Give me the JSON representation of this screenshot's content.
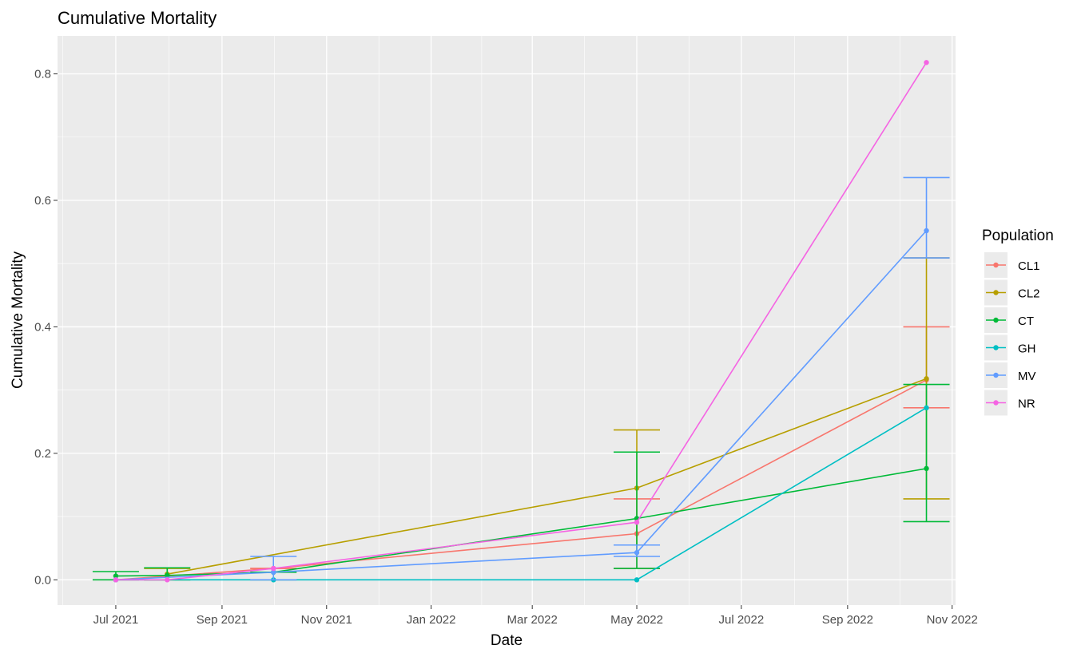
{
  "chart_data": {
    "type": "line",
    "title": "Cumulative Mortality",
    "xlabel": "Date",
    "ylabel": "Cumulative Mortality",
    "x_axis_type": "date",
    "xlim": [
      "2021-05-28",
      "2022-11-03"
    ],
    "ylim": [
      -0.04,
      0.86
    ],
    "x_ticks": [
      {
        "date": "2021-07-01",
        "label": "Jul 2021"
      },
      {
        "date": "2021-09-01",
        "label": "Sep 2021"
      },
      {
        "date": "2021-11-01",
        "label": "Nov 2021"
      },
      {
        "date": "2022-01-01",
        "label": "Jan 2022"
      },
      {
        "date": "2022-03-01",
        "label": "Mar 2022"
      },
      {
        "date": "2022-05-01",
        "label": "May 2022"
      },
      {
        "date": "2022-07-01",
        "label": "Jul 2022"
      },
      {
        "date": "2022-09-01",
        "label": "Sep 2022"
      },
      {
        "date": "2022-11-01",
        "label": "Nov 2022"
      }
    ],
    "y_ticks": [
      {
        "value": 0.0,
        "label": "0.0"
      },
      {
        "value": 0.2,
        "label": "0.2"
      },
      {
        "value": 0.4,
        "label": "0.4"
      },
      {
        "value": 0.6,
        "label": "0.6"
      },
      {
        "value": 0.8,
        "label": "0.8"
      }
    ],
    "grid": true,
    "background": "#ebebeb",
    "legend": {
      "title": "Population",
      "position": "right"
    },
    "error_bars": true,
    "series": [
      {
        "name": "CL1",
        "color": "#F8766D",
        "points": [
          {
            "x": "2021-07-01",
            "y": 0.0
          },
          {
            "x": "2021-10-01",
            "y": 0.018,
            "ymin": 0.018,
            "ymax": 0.018
          },
          {
            "x": "2022-05-01",
            "y": 0.073,
            "ymin": 0.018,
            "ymax": 0.128
          },
          {
            "x": "2022-10-17",
            "y": 0.316,
            "ymin": 0.272,
            "ymax": 0.4
          }
        ]
      },
      {
        "name": "CL2",
        "color": "#B79F00",
        "points": [
          {
            "x": "2021-07-31",
            "y": 0.009,
            "ymin": 0.0,
            "ymax": 0.018
          },
          {
            "x": "2022-05-01",
            "y": 0.145,
            "ymin": 0.055,
            "ymax": 0.237
          },
          {
            "x": "2022-10-17",
            "y": 0.318,
            "ymin": 0.128,
            "ymax": 0.509
          }
        ]
      },
      {
        "name": "CT",
        "color": "#00BA38",
        "points": [
          {
            "x": "2021-07-01",
            "y": 0.006,
            "ymin": 0.0,
            "ymax": 0.013
          },
          {
            "x": "2021-07-31",
            "y": 0.007,
            "ymin": 0.0,
            "ymax": 0.019
          },
          {
            "x": "2021-10-01",
            "y": 0.012,
            "ymin": 0.0,
            "ymax": 0.012
          },
          {
            "x": "2022-05-01",
            "y": 0.097,
            "ymin": 0.018,
            "ymax": 0.202
          },
          {
            "x": "2022-10-17",
            "y": 0.176,
            "ymin": 0.092,
            "ymax": 0.309
          }
        ]
      },
      {
        "name": "GH",
        "color": "#00BFC4",
        "points": [
          {
            "x": "2021-07-01",
            "y": 0.0
          },
          {
            "x": "2021-10-01",
            "y": 0.0
          },
          {
            "x": "2022-05-01",
            "y": 0.0
          },
          {
            "x": "2022-10-17",
            "y": 0.272
          }
        ]
      },
      {
        "name": "MV",
        "color": "#619CFF",
        "points": [
          {
            "x": "2021-07-01",
            "y": 0.0
          },
          {
            "x": "2021-10-01",
            "y": 0.012,
            "ymin": 0.0,
            "ymax": 0.037
          },
          {
            "x": "2022-05-01",
            "y": 0.043,
            "ymin": 0.037,
            "ymax": 0.055
          },
          {
            "x": "2022-10-17",
            "y": 0.552,
            "ymin": 0.509,
            "ymax": 0.636
          }
        ]
      },
      {
        "name": "NR",
        "color": "#F564E3",
        "points": [
          {
            "x": "2021-07-01",
            "y": 0.0
          },
          {
            "x": "2021-07-31",
            "y": 0.0
          },
          {
            "x": "2021-10-01",
            "y": 0.018
          },
          {
            "x": "2022-05-01",
            "y": 0.091
          },
          {
            "x": "2022-10-17",
            "y": 0.818
          }
        ]
      }
    ]
  }
}
